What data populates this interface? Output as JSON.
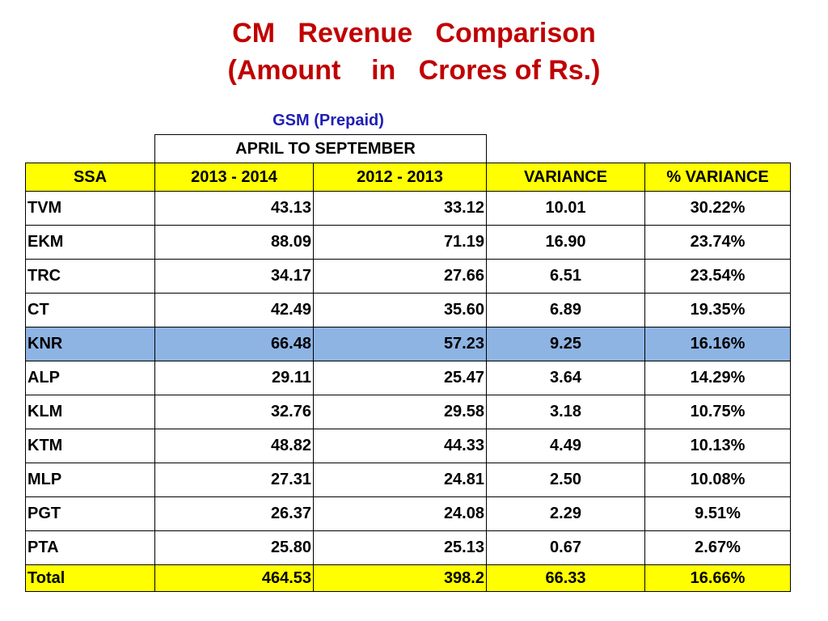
{
  "title_line1": "CM   Revenue   Comparison",
  "title_line2": "(Amount    in   Crores of Rs.)",
  "gsm_label": "GSM (Prepaid)",
  "period_label": "APRIL    TO    SEPTEMBER",
  "columns": [
    "SSA",
    "2013 - 2014",
    "2012 - 2013",
    "VARIANCE",
    "%  VARIANCE"
  ],
  "rows": [
    {
      "ssa": "TVM",
      "y2013": "43.13",
      "y2012": "33.12",
      "variance": "10.01",
      "pct": "30.22%"
    },
    {
      "ssa": "EKM",
      "y2013": "88.09",
      "y2012": "71.19",
      "variance": "16.90",
      "pct": "23.74%"
    },
    {
      "ssa": "TRC",
      "y2013": "34.17",
      "y2012": "27.66",
      "variance": "6.51",
      "pct": "23.54%"
    },
    {
      "ssa": "CT",
      "y2013": "42.49",
      "y2012": "35.60",
      "variance": "6.89",
      "pct": "19.35%"
    },
    {
      "ssa": "KNR",
      "y2013": "66.48",
      "y2012": "57.23",
      "variance": "9.25",
      "pct": "16.16%"
    },
    {
      "ssa": "ALP",
      "y2013": "29.11",
      "y2012": "25.47",
      "variance": "3.64",
      "pct": "14.29%"
    },
    {
      "ssa": "KLM",
      "y2013": "32.76",
      "y2012": "29.58",
      "variance": "3.18",
      "pct": "10.75%"
    },
    {
      "ssa": "KTM",
      "y2013": "48.82",
      "y2012": "44.33",
      "variance": "4.49",
      "pct": "10.13%"
    },
    {
      "ssa": "MLP",
      "y2013": "27.31",
      "y2012": "24.81",
      "variance": "2.50",
      "pct": "10.08%"
    },
    {
      "ssa": "PGT",
      "y2013": "26.37",
      "y2012": "24.08",
      "variance": "2.29",
      "pct": "9.51%"
    },
    {
      "ssa": "PTA",
      "y2013": "25.80",
      "y2012": "25.13",
      "variance": "0.67",
      "pct": "2.67%"
    }
  ],
  "total": {
    "ssa": "Total",
    "y2013": "464.53",
    "y2012": "398.2",
    "variance": "66.33",
    "pct": "16.66%"
  },
  "colors": {
    "title": "#c00000",
    "gsm_label": "#1f1fb4",
    "header_fill": "#ffff00",
    "highlight_fill": "#8eb4e3"
  },
  "chart_data": {
    "type": "table",
    "title": "CM   Revenue   Comparison",
    "subtitle": "(Amount    in   Crores of Rs.)",
    "columns": [
      "SSA",
      "2013 - 2014",
      "2012 - 2013",
      "VARIANCE",
      "%  VARIANCE"
    ],
    "rows": [
      [
        "TVM",
        43.13,
        33.12,
        10.01,
        "30.22%"
      ],
      [
        "EKM",
        88.09,
        71.19,
        16.9,
        "23.74%"
      ],
      [
        "TRC",
        34.17,
        27.66,
        6.51,
        "23.54%"
      ],
      [
        "CT",
        42.49,
        35.6,
        6.89,
        "19.35%"
      ],
      [
        "KNR",
        66.48,
        57.23,
        9.25,
        "16.16%"
      ],
      [
        "ALP",
        29.11,
        25.47,
        3.64,
        "14.29%"
      ],
      [
        "KLM",
        32.76,
        29.58,
        3.18,
        "10.75%"
      ],
      [
        "KTM",
        48.82,
        44.33,
        4.49,
        "10.13%"
      ],
      [
        "MLP",
        27.31,
        24.81,
        2.5,
        "10.08%"
      ],
      [
        "PGT",
        26.37,
        24.08,
        2.29,
        "9.51%"
      ],
      [
        "PTA",
        25.8,
        25.13,
        0.67,
        "2.67%"
      ],
      [
        "Total",
        464.53,
        398.2,
        66.33,
        "16.66%"
      ]
    ],
    "highlighted_row": "KNR"
  }
}
